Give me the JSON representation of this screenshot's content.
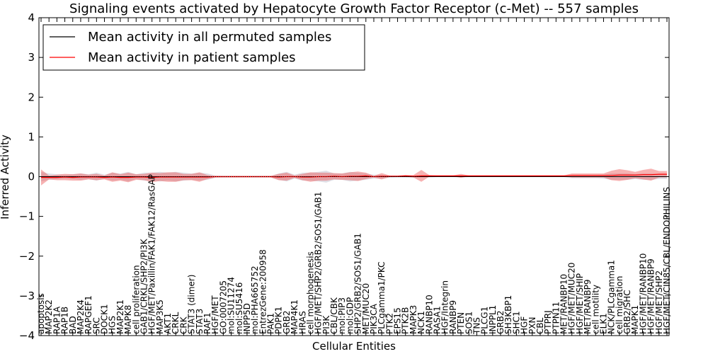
{
  "chart_data": {
    "type": "line",
    "title": "Signaling events activated by Hepatocyte Growth Factor Receptor (c-Met) -- 557 samples",
    "xlabel": "Cellular Entities",
    "ylabel": "Inferred Activity",
    "ylim": [
      -4,
      4
    ],
    "yticks": [
      -4,
      -3,
      -2,
      -1,
      0,
      1,
      2,
      3,
      4
    ],
    "ytick_labels": [
      "−4",
      "−3",
      "−2",
      "−1",
      "0",
      "1",
      "2",
      "3",
      "4"
    ],
    "legend": {
      "placement": "top-left",
      "entries": [
        {
          "label": "Mean activity in all permuted samples",
          "color": "#000000"
        },
        {
          "label": "Mean activity in patient samples",
          "color": "#ff0000"
        }
      ]
    },
    "categories": [
      "apoptosis",
      "MAP2K2",
      "RAP1A",
      "RAP1B",
      "BAD",
      "MAP2K4",
      "RAPGEF1",
      "SRC",
      "DOCK1",
      "HGS",
      "MAP2K1",
      "MAPK8",
      "cell proliferation",
      "GAB1/CRKL/SHP2/PI3K",
      "HGF/MET/Paxillin/FAK1/FAK12/RasGAP",
      "MAP3K5",
      "AKT1",
      "CRKL",
      "CRK",
      "STAT3 (dimer)",
      "STAT3",
      "RAF1",
      "HGF/MET",
      "GO:0007205",
      "mol:SU11274",
      "mol:SU5416",
      "INPP5D",
      "mol:PHA665752",
      "EntrezGene:200958",
      "PAK1",
      "PDPK1",
      "GRB2",
      "MAP4K1",
      "HRAS",
      "cell morphogenesis",
      "HGF/MET/SHP2/GRB2/SOS1/GAB1",
      "PI3K",
      "CBL/CBK",
      "mol:PIP3",
      "mol:GDP",
      "SHP2/GRB2/SOS1/GAB1",
      "MET/MUC20",
      "PIK3CA",
      "PLCgamma1/PKC",
      "PTK2",
      "EPS15",
      "PTK2B",
      "MAPK3",
      "NCK1",
      "RANBP10",
      "RASA1",
      "HGF/Integrin",
      "RANBP9",
      "PTEN",
      "SOS1",
      "TNS",
      "PLCG1",
      "INPPL1",
      "GRB2",
      "SH3KBP1",
      "SHC1",
      "HGF",
      "PXN",
      "CBL",
      "PTPRJ",
      "PTPN11",
      "MET/RANBP10",
      "HGF/MET/MUC20",
      "HGF/MET/SHIP",
      "MET/RANBP9",
      "cell motility",
      "ELK1",
      "NCK/PLCgamma1",
      "cell migration",
      "GRB2/SHC",
      "MAPK1",
      "HGF/MET/RANBP10",
      "HGF/MET/RANBP9",
      "HGF/MET/SHP2",
      "HGF/MET/CIN85/CBL/ENDOPHILINS"
    ],
    "series": [
      {
        "name": "Mean activity in all permuted samples",
        "color": "#000000",
        "values": [
          0,
          0,
          0,
          0,
          0,
          0,
          0,
          0,
          0,
          0,
          0,
          0,
          0,
          0,
          0,
          0,
          0,
          0,
          0,
          0,
          0,
          0,
          0,
          0,
          0,
          0,
          0,
          0,
          0,
          0,
          0,
          0,
          0,
          0,
          0,
          0,
          0,
          0,
          0,
          0,
          0,
          0,
          0,
          0,
          0,
          0,
          0,
          0,
          0,
          0,
          0,
          0,
          0,
          0,
          0,
          0,
          0,
          0,
          0,
          0,
          0,
          0,
          0,
          0,
          0,
          0,
          0,
          0,
          0,
          0,
          0,
          0,
          0,
          0,
          0,
          0,
          0,
          0,
          0,
          0
        ]
      },
      {
        "name": "Mean activity in patient samples",
        "color": "#ff0000",
        "values": [
          -0.02,
          -0.02,
          -0.02,
          -0.01,
          -0.02,
          -0.01,
          -0.01,
          -0.01,
          -0.02,
          -0.01,
          -0.02,
          -0.02,
          -0.01,
          -0.01,
          -0.02,
          -0.01,
          -0.01,
          -0.01,
          -0.01,
          -0.01,
          -0.01,
          -0.01,
          0,
          0,
          0,
          0,
          0,
          0,
          0,
          0,
          -0.01,
          0,
          0,
          -0.01,
          -0.01,
          0,
          0,
          0.01,
          0,
          0.01,
          0.01,
          0.02,
          0,
          0.01,
          0.01,
          0.01,
          0.02,
          0.01,
          0.02,
          0.02,
          0.02,
          0.02,
          0.02,
          0.02,
          0.02,
          0.02,
          0.02,
          0.02,
          0.02,
          0.02,
          0.02,
          0.02,
          0.02,
          0.02,
          0.02,
          0.02,
          0.02,
          0.03,
          0.03,
          0.03,
          0.03,
          0.03,
          0.03,
          0.04,
          0.04,
          0.04,
          0.05,
          0.05,
          0.06,
          0.06
        ]
      }
    ],
    "band_patient_halfwidth": [
      0.2,
      0.05,
      0.07,
      0.08,
      0.08,
      0.09,
      0.06,
      0.08,
      0.05,
      0.12,
      0.08,
      0.12,
      0.07,
      0.08,
      0.12,
      0.1,
      0.12,
      0.12,
      0.08,
      0.08,
      0.12,
      0.05,
      0.02,
      0.02,
      0.02,
      0.02,
      0.02,
      0.02,
      0.02,
      0.02,
      0.08,
      0.1,
      0.03,
      0.08,
      0.12,
      0.1,
      0.1,
      0.08,
      0.08,
      0.1,
      0.12,
      0.08,
      0.02,
      0.08,
      0.02,
      0.02,
      0.02,
      0.03,
      0.15,
      0.02,
      0.01,
      0.01,
      0.01,
      0.05,
      0.01,
      0.01,
      0.01,
      0.01,
      0.01,
      0.01,
      0.01,
      0.01,
      0.01,
      0.01,
      0.01,
      0.01,
      0.01,
      0.05,
      0.05,
      0.05,
      0.05,
      0.05,
      0.12,
      0.15,
      0.12,
      0.08,
      0.12,
      0.15,
      0.08,
      0.08
    ],
    "band_permuted_halfwidth": [
      0.12,
      0.08,
      0.06,
      0.05,
      0.06,
      0.08,
      0.06,
      0.1,
      0.05,
      0.1,
      0.08,
      0.12,
      0.06,
      0.1,
      0.1,
      0.12,
      0.1,
      0.12,
      0.1,
      0.08,
      0.1,
      0.08,
      0.03,
      0.02,
      0.02,
      0.02,
      0.02,
      0.02,
      0.02,
      0.02,
      0.08,
      0.12,
      0.05,
      0.1,
      0.1,
      0.12,
      0.15,
      0.08,
      0.08,
      0.12,
      0.1,
      0.08,
      0.05,
      0.05,
      0.03,
      0.02,
      0.02,
      0.03,
      0.02,
      0.02,
      0.01,
      0.01,
      0.01,
      0.02,
      0.01,
      0.01,
      0.01,
      0.01,
      0.01,
      0.01,
      0.01,
      0.01,
      0.01,
      0.01,
      0.01,
      0.01,
      0.01,
      0.04,
      0.04,
      0.04,
      0.04,
      0.05,
      0.08,
      0.08,
      0.08,
      0.06,
      0.08,
      0.08,
      0.06,
      0.06
    ]
  }
}
